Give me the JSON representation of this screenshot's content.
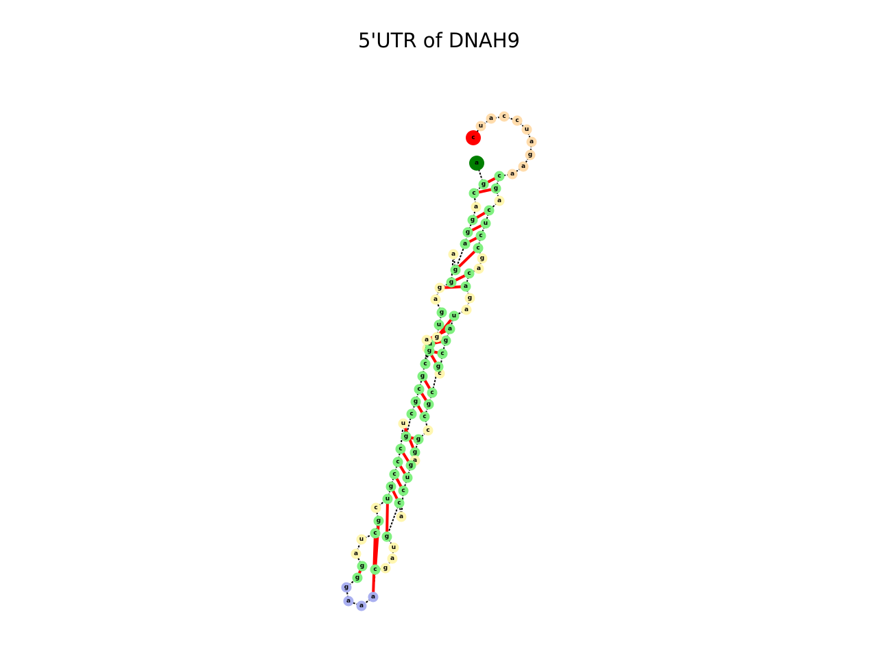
{
  "title": "5'UTR of DNAH9",
  "colors": {
    "start": "#ff0000",
    "end": "#007f00",
    "stem": "#80f080",
    "interior": "#fff6b0",
    "hairpin": "#aab0f0",
    "exterior": "#ffdcac",
    "backbone": "#000000",
    "pair": "#ff0000"
  },
  "nucleotides": [
    {
      "base": "c",
      "role": "start"
    },
    {
      "base": "u",
      "role": "exterior"
    },
    {
      "base": "a",
      "role": "exterior"
    },
    {
      "base": "c",
      "role": "exterior"
    },
    {
      "base": "c",
      "role": "exterior"
    },
    {
      "base": "u",
      "role": "exterior"
    },
    {
      "base": "a",
      "role": "exterior"
    },
    {
      "base": "g",
      "role": "exterior"
    },
    {
      "base": "a",
      "role": "exterior"
    },
    {
      "base": "a",
      "role": "exterior"
    },
    {
      "base": "c",
      "role": "stem"
    },
    {
      "base": "g",
      "role": "stem"
    },
    {
      "base": "a",
      "role": "interior"
    },
    {
      "base": "c",
      "role": "stem"
    },
    {
      "base": "u",
      "role": "stem"
    },
    {
      "base": "c",
      "role": "stem"
    },
    {
      "base": "c",
      "role": "stem"
    },
    {
      "base": "g",
      "role": "interior"
    },
    {
      "base": "a",
      "role": "interior"
    },
    {
      "base": "c",
      "role": "stem"
    },
    {
      "base": "a",
      "role": "stem"
    },
    {
      "base": "g",
      "role": "interior"
    },
    {
      "base": "a",
      "role": "interior"
    },
    {
      "base": "u",
      "role": "stem"
    },
    {
      "base": "a",
      "role": "stem"
    },
    {
      "base": "g",
      "role": "stem"
    },
    {
      "base": "c",
      "role": "stem"
    },
    {
      "base": "c",
      "role": "interior"
    },
    {
      "base": "g",
      "role": "stem"
    },
    {
      "base": "c",
      "role": "stem"
    },
    {
      "base": "g",
      "role": "stem"
    },
    {
      "base": "c",
      "role": "stem"
    },
    {
      "base": "c",
      "role": "interior"
    },
    {
      "base": "g",
      "role": "stem"
    },
    {
      "base": "g",
      "role": "stem"
    },
    {
      "base": "a",
      "role": "interior"
    },
    {
      "base": "g",
      "role": "stem"
    },
    {
      "base": "u",
      "role": "stem"
    },
    {
      "base": "c",
      "role": "stem"
    },
    {
      "base": "a",
      "role": "interior"
    },
    {
      "base": "c",
      "role": "stem"
    },
    {
      "base": "g",
      "role": "stem"
    },
    {
      "base": "u",
      "role": "interior"
    },
    {
      "base": "a",
      "role": "interior"
    },
    {
      "base": "g",
      "role": "interior"
    },
    {
      "base": "c",
      "role": "stem"
    },
    {
      "base": "a",
      "role": "hairpin"
    },
    {
      "base": "a",
      "role": "hairpin"
    },
    {
      "base": "a",
      "role": "hairpin"
    },
    {
      "base": "g",
      "role": "hairpin"
    },
    {
      "base": "g",
      "role": "stem"
    },
    {
      "base": "g",
      "role": "stem"
    },
    {
      "base": "a",
      "role": "interior"
    },
    {
      "base": "u",
      "role": "interior"
    },
    {
      "base": "c",
      "role": "stem"
    },
    {
      "base": "g",
      "role": "stem"
    },
    {
      "base": "c",
      "role": "interior"
    },
    {
      "base": "u",
      "role": "stem"
    },
    {
      "base": "g",
      "role": "stem"
    },
    {
      "base": "c",
      "role": "stem"
    },
    {
      "base": "c",
      "role": "stem"
    },
    {
      "base": "c",
      "role": "stem"
    },
    {
      "base": "u",
      "role": "interior"
    },
    {
      "base": "g",
      "role": "stem"
    },
    {
      "base": "c",
      "role": "stem"
    },
    {
      "base": "g",
      "role": "stem"
    },
    {
      "base": "c",
      "role": "stem"
    },
    {
      "base": "g",
      "role": "stem"
    },
    {
      "base": "g",
      "role": "interior"
    },
    {
      "base": "c",
      "role": "stem"
    },
    {
      "base": "g",
      "role": "stem"
    },
    {
      "base": "u",
      "role": "stem"
    },
    {
      "base": "a",
      "role": "interior"
    },
    {
      "base": "g",
      "role": "interior"
    },
    {
      "base": "u",
      "role": "stem"
    },
    {
      "base": "g",
      "role": "stem"
    },
    {
      "base": "a",
      "role": "interior"
    },
    {
      "base": "g",
      "role": "interior"
    },
    {
      "base": "g",
      "role": "stem"
    },
    {
      "base": "a",
      "role": "interior"
    },
    {
      "base": "g",
      "role": "stem"
    },
    {
      "base": "a",
      "role": "stem"
    },
    {
      "base": "g",
      "role": "stem"
    },
    {
      "base": "g",
      "role": "stem"
    },
    {
      "base": "a",
      "role": "interior"
    },
    {
      "base": "c",
      "role": "stem"
    },
    {
      "base": "g",
      "role": "stem"
    },
    {
      "base": "a",
      "role": "end"
    }
  ]
}
